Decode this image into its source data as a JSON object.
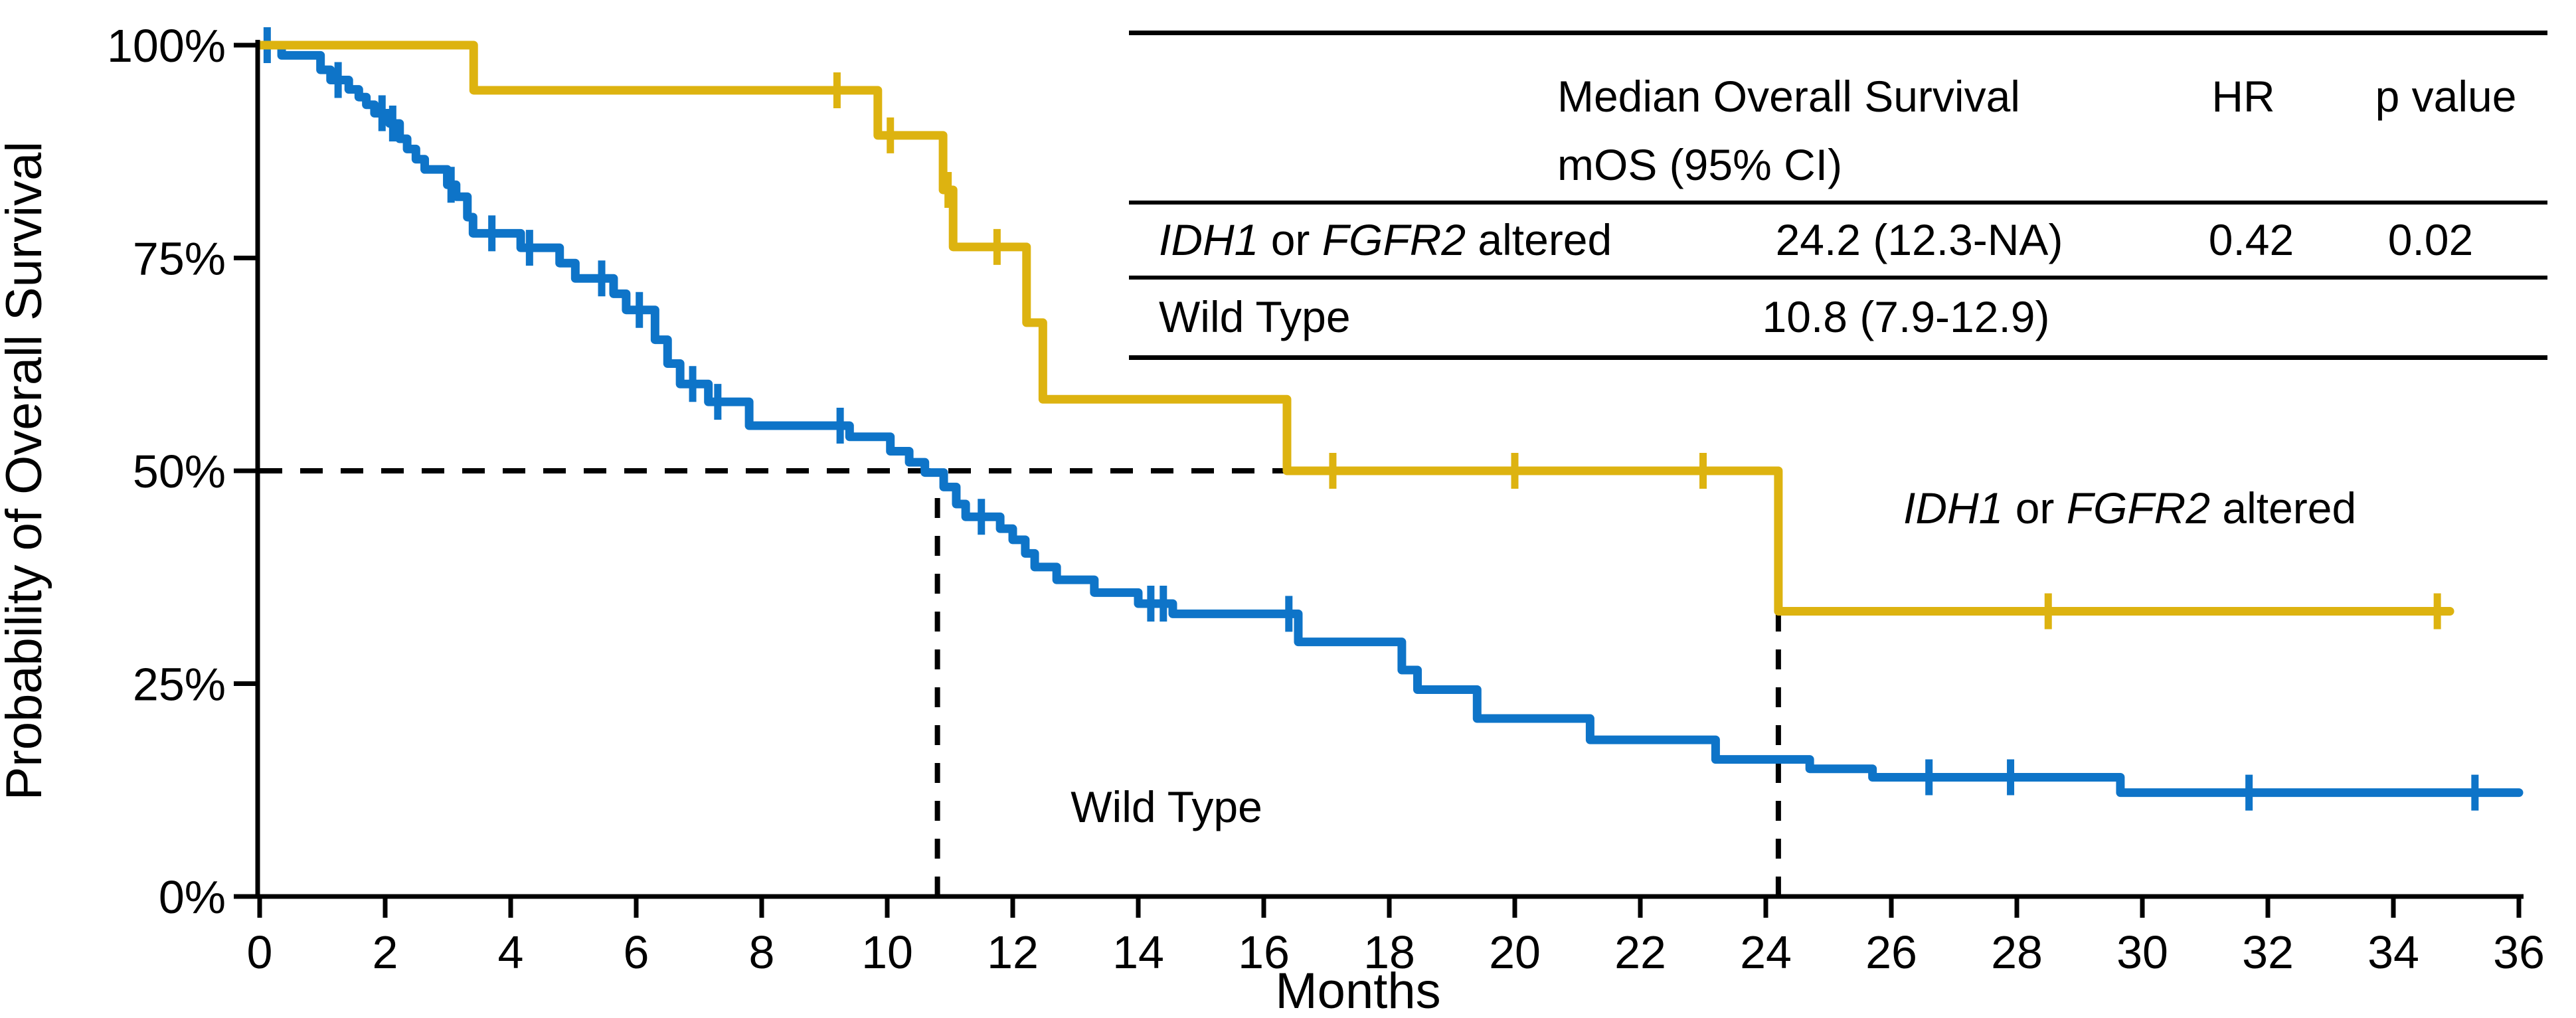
{
  "chart_data": {
    "type": "line",
    "subtype": "kaplan-meier-step",
    "title": "",
    "xlabel": "Months",
    "ylabel": "Probability of Overall Survival",
    "xlim": [
      0,
      36
    ],
    "ylim": [
      0,
      100
    ],
    "xticks": [
      0,
      2,
      4,
      6,
      8,
      10,
      12,
      14,
      16,
      18,
      20,
      22,
      24,
      26,
      28,
      30,
      32,
      34,
      36
    ],
    "yticks": [
      {
        "value": 0,
        "label": "0%"
      },
      {
        "value": 25,
        "label": "25%"
      },
      {
        "value": 50,
        "label": "50%"
      },
      {
        "value": 75,
        "label": "75%"
      },
      {
        "value": 100,
        "label": "100%"
      }
    ],
    "grid": false,
    "legend_position": "labels-on-plot",
    "series": [
      {
        "name": "Wild Type",
        "color": "#0E74C8",
        "median_months": 10.8,
        "end_month": 36.0,
        "steps": [
          [
            0,
            100
          ],
          [
            0.35,
            98.8
          ],
          [
            0.97,
            97.1
          ],
          [
            1.13,
            95.9
          ],
          [
            1.42,
            94.8
          ],
          [
            1.58,
            93.9
          ],
          [
            1.7,
            93.0
          ],
          [
            1.83,
            92.0
          ],
          [
            2.07,
            90.8
          ],
          [
            2.23,
            89.0
          ],
          [
            2.35,
            87.8
          ],
          [
            2.49,
            86.6
          ],
          [
            2.63,
            85.4
          ],
          [
            2.99,
            83.6
          ],
          [
            3.13,
            82.2
          ],
          [
            3.31,
            79.8
          ],
          [
            3.4,
            77.9
          ],
          [
            4.16,
            76.2
          ],
          [
            4.78,
            74.4
          ],
          [
            5.03,
            72.6
          ],
          [
            5.64,
            70.8
          ],
          [
            5.84,
            68.9
          ],
          [
            6.3,
            65.4
          ],
          [
            6.5,
            62.6
          ],
          [
            6.7,
            60.2
          ],
          [
            7.15,
            58.1
          ],
          [
            7.8,
            55.3
          ],
          [
            9.4,
            54.0
          ],
          [
            10.05,
            52.3
          ],
          [
            10.35,
            51.0
          ],
          [
            10.6,
            49.8
          ],
          [
            10.9,
            48.1
          ],
          [
            11.1,
            46.1
          ],
          [
            11.25,
            44.6
          ],
          [
            11.8,
            43.2
          ],
          [
            12.0,
            41.9
          ],
          [
            12.2,
            40.3
          ],
          [
            12.35,
            38.7
          ],
          [
            12.7,
            37.2
          ],
          [
            13.3,
            35.7
          ],
          [
            14.0,
            34.4
          ],
          [
            14.55,
            33.2
          ],
          [
            16.55,
            29.9
          ],
          [
            18.2,
            26.6
          ],
          [
            18.45,
            24.3
          ],
          [
            19.4,
            20.9
          ],
          [
            21.2,
            18.4
          ],
          [
            23.2,
            16.1
          ],
          [
            24.7,
            15.0
          ],
          [
            25.7,
            14.0
          ],
          [
            29.65,
            12.2
          ]
        ],
        "censor_marks": [
          [
            0.12,
            100
          ],
          [
            1.25,
            95.9
          ],
          [
            1.95,
            92.0
          ],
          [
            2.12,
            90.8
          ],
          [
            3.05,
            83.6
          ],
          [
            3.7,
            77.9
          ],
          [
            4.3,
            76.2
          ],
          [
            5.45,
            72.6
          ],
          [
            6.05,
            68.9
          ],
          [
            6.9,
            60.2
          ],
          [
            7.3,
            58.1
          ],
          [
            9.25,
            55.3
          ],
          [
            11.5,
            44.6
          ],
          [
            14.2,
            34.4
          ],
          [
            14.4,
            34.4
          ],
          [
            16.4,
            33.2
          ],
          [
            26.6,
            14.0
          ],
          [
            27.9,
            14.0
          ],
          [
            31.7,
            12.2
          ],
          [
            35.3,
            12.2
          ]
        ]
      },
      {
        "name": "IDH1 or FGFR2 altered",
        "color": "#DDB310",
        "median_months": 24.2,
        "end_month": 34.9,
        "steps": [
          [
            0,
            100
          ],
          [
            3.41,
            94.7
          ],
          [
            9.85,
            89.4
          ],
          [
            10.89,
            83.0
          ],
          [
            11.05,
            76.3
          ],
          [
            12.22,
            67.4
          ],
          [
            12.48,
            58.4
          ],
          [
            16.37,
            50.0
          ],
          [
            24.2,
            33.5
          ]
        ],
        "censor_marks": [
          [
            9.2,
            94.7
          ],
          [
            10.05,
            89.4
          ],
          [
            10.97,
            83.0
          ],
          [
            11.75,
            76.3
          ],
          [
            17.1,
            50.0
          ],
          [
            20.0,
            50.0
          ],
          [
            23.0,
            50.0
          ],
          [
            28.5,
            33.5
          ],
          [
            34.7,
            33.5
          ]
        ]
      }
    ],
    "reference_lines": {
      "horizontal_50pct": {
        "y_pct": 50,
        "t_start": 0,
        "t_end": 24.2,
        "style": "dashed"
      },
      "vertical_medians": [
        {
          "t": 10.8,
          "p_bottom": 0,
          "p_top": 50,
          "style": "dashed"
        },
        {
          "t": 24.2,
          "p_bottom": 0,
          "p_top": 50,
          "style": "dashed"
        }
      ]
    },
    "annotations": [
      {
        "id": "label-wild-type",
        "parts": [
          {
            "text": "Wild Type",
            "italic": false
          }
        ],
        "x_month": 14.45,
        "y_pct": 10.5
      },
      {
        "id": "label-idh1-fgfr2-altered",
        "parts": [
          {
            "text": "IDH1",
            "italic": true
          },
          {
            "text": " or ",
            "italic": false
          },
          {
            "text": "FGFR2",
            "italic": true
          },
          {
            "text": " altered",
            "italic": false
          }
        ],
        "x_month": 29.8,
        "y_pct": 45.6
      }
    ]
  },
  "table": {
    "header": {
      "mos_line1": "Median Overall Survival",
      "mos_line2": "mOS (95% CI)",
      "hr": "HR",
      "p": "p value"
    },
    "rows": [
      {
        "group_parts": [
          {
            "text": "IDH1",
            "italic": true
          },
          {
            "text": " or ",
            "italic": false
          },
          {
            "text": "FGFR2",
            "italic": true
          },
          {
            "text": " altered",
            "italic": false
          }
        ],
        "mos": "24.2 (12.3-NA)",
        "hr": "0.42",
        "p": "0.02"
      },
      {
        "group_parts": [
          {
            "text": "Wild Type",
            "italic": false
          }
        ],
        "mos": "10.8 (7.9-12.9)",
        "hr": "",
        "p": ""
      }
    ]
  },
  "colors": {
    "altered_curve": "#DDB310",
    "wild_type_curve": "#0E74C8",
    "axis": "#000000",
    "background": "#ffffff"
  }
}
